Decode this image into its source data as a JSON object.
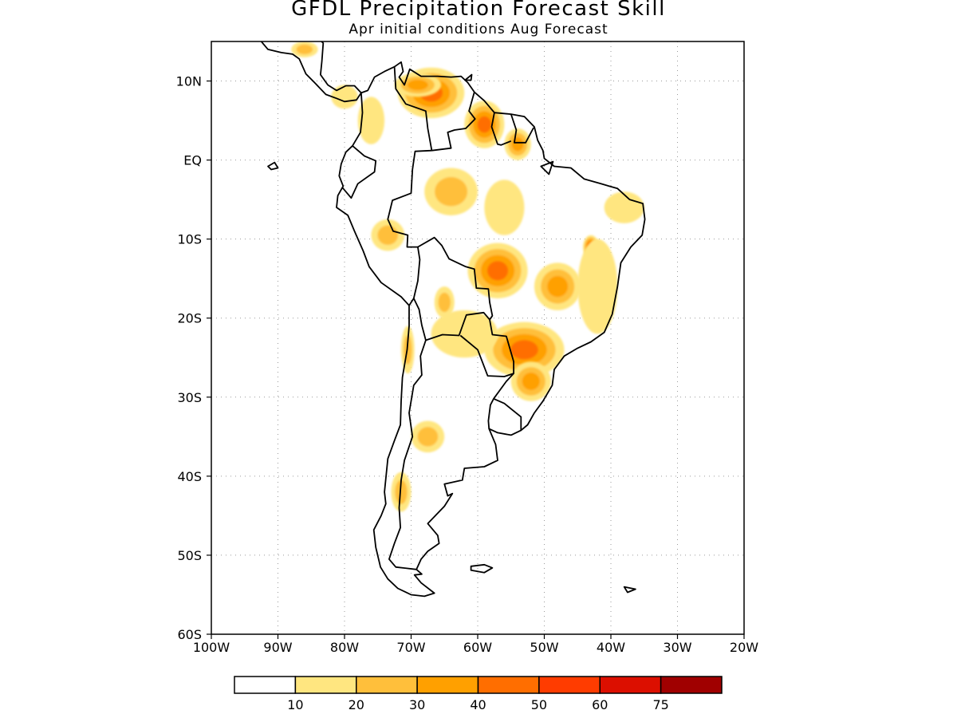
{
  "title": "GFDL Precipitation Forecast Skill",
  "subtitle": "Apr initial conditions  Aug Forecast",
  "map": {
    "lon_range": [
      -100,
      -20
    ],
    "lat_range": [
      -60,
      15
    ],
    "lon_ticks": [
      {
        "value": -100,
        "label": "100W"
      },
      {
        "value": -90,
        "label": "90W"
      },
      {
        "value": -80,
        "label": "80W"
      },
      {
        "value": -70,
        "label": "70W"
      },
      {
        "value": -60,
        "label": "60W"
      },
      {
        "value": -50,
        "label": "50W"
      },
      {
        "value": -40,
        "label": "40W"
      },
      {
        "value": -30,
        "label": "30W"
      },
      {
        "value": -20,
        "label": "20W"
      }
    ],
    "lat_ticks": [
      {
        "value": 10,
        "label": "10N"
      },
      {
        "value": 0,
        "label": "EQ"
      },
      {
        "value": -10,
        "label": "10S"
      },
      {
        "value": -20,
        "label": "20S"
      },
      {
        "value": -30,
        "label": "30S"
      },
      {
        "value": -40,
        "label": "40S"
      },
      {
        "value": -50,
        "label": "50S"
      },
      {
        "value": -60,
        "label": "60S"
      }
    ],
    "grid": "dotted",
    "region": "South America"
  },
  "skill_regions": [
    {
      "name": "venezuela",
      "lon": -67,
      "lat": 8.5,
      "rx": 5,
      "ry": 3.2,
      "value": 42
    },
    {
      "name": "venezuela-north",
      "lon": -69,
      "lat": 9.5,
      "rx": 3.5,
      "ry": 1.5,
      "value": 35
    },
    {
      "name": "guyana",
      "lon": -59,
      "lat": 4.5,
      "rx": 3,
      "ry": 3,
      "value": 40
    },
    {
      "name": "french-guiana",
      "lon": -54,
      "lat": 2,
      "rx": 2,
      "ry": 2,
      "value": 38
    },
    {
      "name": "colombia-west",
      "lon": -76,
      "lat": 5,
      "rx": 2,
      "ry": 3,
      "value": 15
    },
    {
      "name": "amazon-central",
      "lon": -64,
      "lat": -4,
      "rx": 4,
      "ry": 3,
      "value": 25
    },
    {
      "name": "amazon-east",
      "lon": -56,
      "lat": -6,
      "rx": 3,
      "ry": 3.5,
      "value": 15
    },
    {
      "name": "peru-north",
      "lon": -73.5,
      "lat": -9.5,
      "rx": 2.5,
      "ry": 2,
      "value": 25
    },
    {
      "name": "mato-grosso",
      "lon": -57,
      "lat": -14,
      "rx": 4.5,
      "ry": 3.5,
      "value": 42
    },
    {
      "name": "goias",
      "lon": -48,
      "lat": -16,
      "rx": 3.5,
      "ry": 3,
      "value": 38
    },
    {
      "name": "bahia-west",
      "lon": -43,
      "lat": -11,
      "rx": 1.2,
      "ry": 1.5,
      "value": 55
    },
    {
      "name": "bahia",
      "lon": -42,
      "lat": -16,
      "rx": 3,
      "ry": 6,
      "value": 15
    },
    {
      "name": "brazil-northeast",
      "lon": -38,
      "lat": -6,
      "rx": 3,
      "ry": 2,
      "value": 15
    },
    {
      "name": "parana",
      "lon": -53,
      "lat": -24,
      "rx": 6,
      "ry": 3.5,
      "value": 48
    },
    {
      "name": "rio-grande-do-sul",
      "lon": -52,
      "lat": -28,
      "rx": 3,
      "ry": 2.5,
      "value": 30
    },
    {
      "name": "chaco",
      "lon": -62,
      "lat": -22,
      "rx": 5,
      "ry": 3,
      "value": 15
    },
    {
      "name": "bolivia",
      "lon": -65,
      "lat": -18,
      "rx": 1.5,
      "ry": 2,
      "value": 28
    },
    {
      "name": "chile-north",
      "lon": -70.5,
      "lat": -24,
      "rx": 1,
      "ry": 3,
      "value": 20
    },
    {
      "name": "chile-central",
      "lon": -67.5,
      "lat": -35,
      "rx": 2.5,
      "ry": 2,
      "value": 28
    },
    {
      "name": "patagonia",
      "lon": -71.5,
      "lat": -42,
      "rx": 1.5,
      "ry": 2.5,
      "value": 28
    },
    {
      "name": "central-america",
      "lon": -86,
      "lat": 14,
      "rx": 2,
      "ry": 1,
      "value": 20
    },
    {
      "name": "panama",
      "lon": -80,
      "lat": 8,
      "rx": 2,
      "ry": 1.5,
      "value": 15
    }
  ],
  "legend": {
    "bins": [
      {
        "color": "#ffffff",
        "label": ""
      },
      {
        "color": "#ffe680",
        "label": "10"
      },
      {
        "color": "#ffbf3b",
        "label": "20"
      },
      {
        "color": "#ffa000",
        "label": "30"
      },
      {
        "color": "#ff6e00",
        "label": "40"
      },
      {
        "color": "#ff3c00",
        "label": "50"
      },
      {
        "color": "#dc0f00",
        "label": "60"
      },
      {
        "color": "#a00000",
        "label": "75"
      }
    ],
    "thresholds": [
      0,
      10,
      20,
      30,
      40,
      50,
      60,
      75
    ]
  }
}
